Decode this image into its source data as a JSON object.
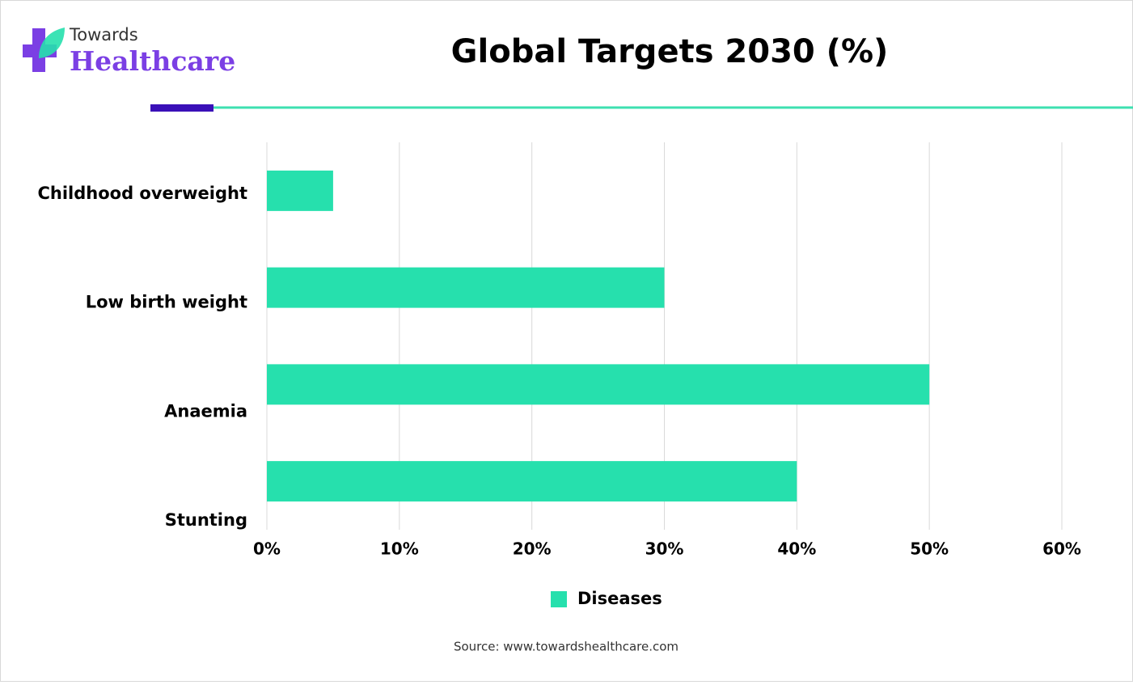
{
  "logo": {
    "line1": "Towards",
    "line2": "Healthcare"
  },
  "chart_data": {
    "type": "bar",
    "orientation": "horizontal",
    "title": "Global Targets 2030 (%)",
    "categories": [
      "Childhood overweight",
      "Low birth weight",
      "Anaemia",
      "Stunting"
    ],
    "series": [
      {
        "name": "Diseases",
        "color": "#26e0ad",
        "values": [
          5,
          30,
          50,
          40
        ]
      }
    ],
    "xlim": [
      0,
      60
    ],
    "xticks": [
      {
        "value": 0,
        "label": "0%"
      },
      {
        "value": 10,
        "label": "10%"
      },
      {
        "value": 20,
        "label": "20%"
      },
      {
        "value": 30,
        "label": "30%"
      },
      {
        "value": 40,
        "label": "40%"
      },
      {
        "value": 50,
        "label": "50%"
      },
      {
        "value": 60,
        "label": "60%"
      }
    ],
    "grid": true,
    "legend": "bottom",
    "source": "Source: www.towardshealthcare.com"
  }
}
